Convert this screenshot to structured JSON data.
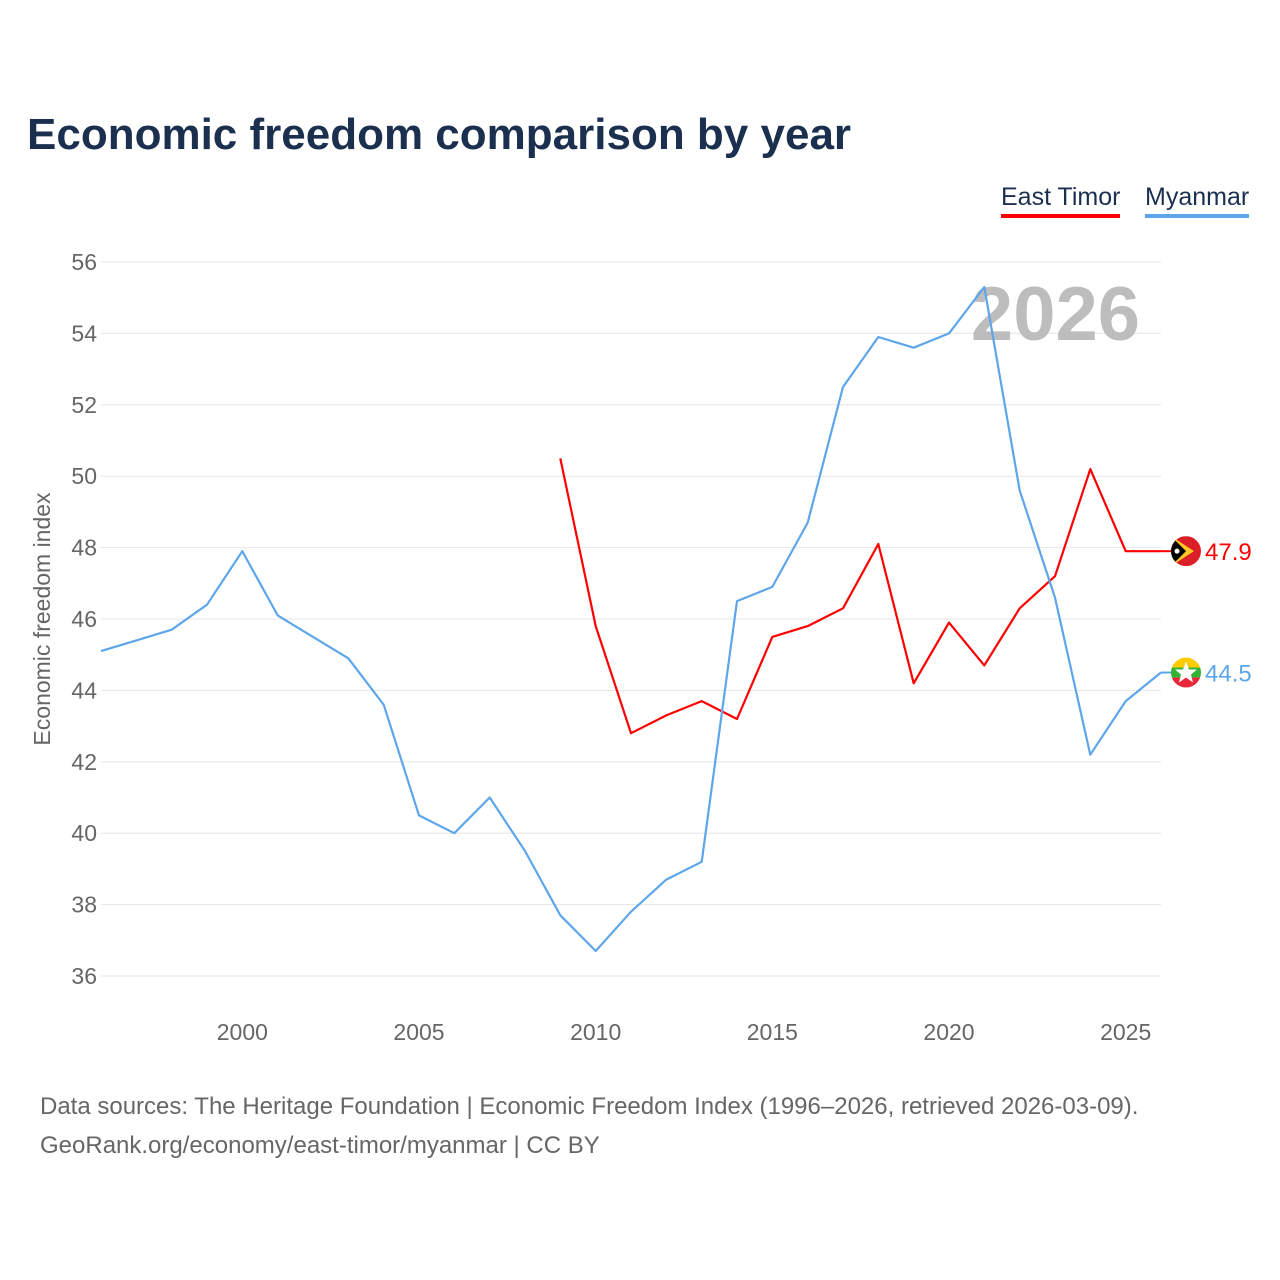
{
  "chart_data": {
    "type": "line",
    "title": "Economic freedom comparison by year",
    "xlabel": "",
    "ylabel": "Economic freedom index",
    "xlim": [
      1996,
      2026
    ],
    "ylim": [
      36,
      56
    ],
    "yticks": [
      36,
      38,
      40,
      42,
      44,
      46,
      48,
      50,
      52,
      54,
      56
    ],
    "xticks": [
      2000,
      2005,
      2010,
      2015,
      2020,
      2025
    ],
    "grid": true,
    "legend_position": "top-right",
    "watermark_year": "2026",
    "series": [
      {
        "name": "East Timor",
        "color": "#ff0000",
        "end_label": "47.9",
        "x": [
          2009,
          2010,
          2011,
          2012,
          2013,
          2014,
          2015,
          2016,
          2017,
          2018,
          2019,
          2020,
          2021,
          2022,
          2023,
          2024,
          2025,
          2026
        ],
        "values": [
          50.5,
          45.8,
          42.8,
          43.3,
          43.7,
          43.2,
          45.5,
          45.8,
          46.3,
          48.1,
          44.2,
          45.9,
          44.7,
          46.3,
          47.2,
          50.2,
          47.9,
          47.9
        ]
      },
      {
        "name": "Myanmar",
        "color": "#5ea6ea",
        "end_label": "44.5",
        "x": [
          1996,
          1997,
          1998,
          1999,
          2000,
          2001,
          2002,
          2003,
          2004,
          2005,
          2006,
          2007,
          2008,
          2009,
          2010,
          2011,
          2012,
          2013,
          2014,
          2015,
          2016,
          2017,
          2018,
          2019,
          2020,
          2021,
          2022,
          2023,
          2024,
          2025,
          2026
        ],
        "values": [
          45.1,
          45.4,
          45.7,
          46.4,
          47.9,
          46.1,
          45.5,
          44.9,
          43.6,
          40.5,
          40.0,
          41.0,
          39.5,
          37.7,
          36.7,
          37.8,
          38.7,
          39.2,
          46.5,
          46.9,
          48.7,
          52.5,
          53.9,
          53.6,
          54.0,
          55.3,
          49.6,
          46.6,
          42.2,
          43.7,
          44.5
        ]
      }
    ]
  },
  "footer": {
    "line1": "Data sources: The Heritage Foundation | Economic Freedom Index (1996–2026, retrieved 2026-03-09).",
    "line2": "GeoRank.org/economy/east-timor/myanmar | CC BY"
  }
}
